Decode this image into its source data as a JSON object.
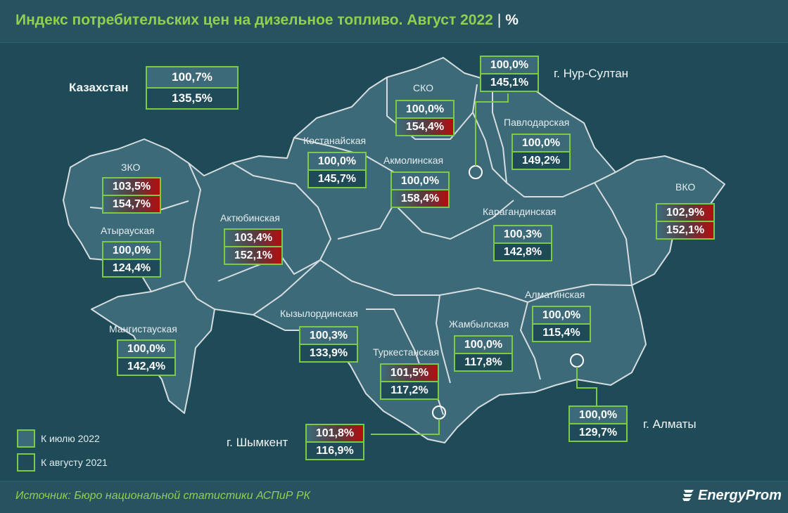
{
  "header": {
    "title": "Индекс потребительских цен на дизельное топливо. Август 2022",
    "separator": "|",
    "unit": "%"
  },
  "colors": {
    "accent": "#8fd14f",
    "box_border": "#7dcb45",
    "increase": "#b20d10",
    "background": "#1f4b58",
    "region_fill": "#3d6a78"
  },
  "country": {
    "name": "Казахстан",
    "vs_july_2022": "100,7%",
    "vs_aug_2021": "135,5%"
  },
  "regions": [
    {
      "id": "zko",
      "name": "ЗКО",
      "vs_july_2022": "103,5%",
      "vs_aug_2021": "154,7%",
      "up": true
    },
    {
      "id": "atyrau",
      "name": "Атырауская",
      "vs_july_2022": "100,0%",
      "vs_aug_2021": "124,4%",
      "up": false
    },
    {
      "id": "mangystau",
      "name": "Мангистауская",
      "vs_july_2022": "100,0%",
      "vs_aug_2021": "142,4%",
      "up": false
    },
    {
      "id": "aktobe",
      "name": "Актюбинская",
      "vs_july_2022": "103,4%",
      "vs_aug_2021": "152,1%",
      "up": true
    },
    {
      "id": "kostanay",
      "name": "Костанайская",
      "vs_july_2022": "100,0%",
      "vs_aug_2021": "145,7%",
      "up": false
    },
    {
      "id": "sko",
      "name": "СКО",
      "vs_july_2022": "100,0%",
      "vs_aug_2021": "154,4%",
      "up": true
    },
    {
      "id": "akmola",
      "name": "Акмолинская",
      "vs_july_2022": "100,0%",
      "vs_aug_2021": "158,4%",
      "up": true
    },
    {
      "id": "pavlodar",
      "name": "Павлодарская",
      "vs_july_2022": "100,0%",
      "vs_aug_2021": "149,2%",
      "up": false
    },
    {
      "id": "karaganda",
      "name": "Карагандинская",
      "vs_july_2022": "100,3%",
      "vs_aug_2021": "142,8%",
      "up": false
    },
    {
      "id": "vko",
      "name": "ВКО",
      "vs_july_2022": "102,9%",
      "vs_aug_2021": "152,1%",
      "up": true
    },
    {
      "id": "kyzylorda",
      "name": "Кызылординская",
      "vs_july_2022": "100,3%",
      "vs_aug_2021": "133,9%",
      "up": false
    },
    {
      "id": "turkestan",
      "name": "Туркестанская",
      "vs_july_2022": "101,5%",
      "vs_aug_2021": "117,2%",
      "up": true
    },
    {
      "id": "zhambyl",
      "name": "Жамбылская",
      "vs_july_2022": "100,0%",
      "vs_aug_2021": "117,8%",
      "up": false
    },
    {
      "id": "almaty_reg",
      "name": "Алматинская",
      "vs_july_2022": "100,0%",
      "vs_aug_2021": "115,4%",
      "up": false
    }
  ],
  "cities": [
    {
      "id": "nur_sultan",
      "name": "г. Нур-Султан",
      "vs_july_2022": "100,0%",
      "vs_aug_2021": "145,1%",
      "up": false
    },
    {
      "id": "almaty",
      "name": "г. Алматы",
      "vs_july_2022": "100,0%",
      "vs_aug_2021": "129,7%",
      "up": false
    },
    {
      "id": "shymkent",
      "name": "г. Шымкент",
      "vs_july_2022": "101,8%",
      "vs_aug_2021": "116,9%",
      "up": true
    }
  ],
  "legend": {
    "vs_july": "К июлю 2022",
    "vs_aug": "К августу 2021"
  },
  "footer": {
    "source": "Источник: Бюро национальной статистики АСПиР РК",
    "brand": "EnergyProm"
  }
}
